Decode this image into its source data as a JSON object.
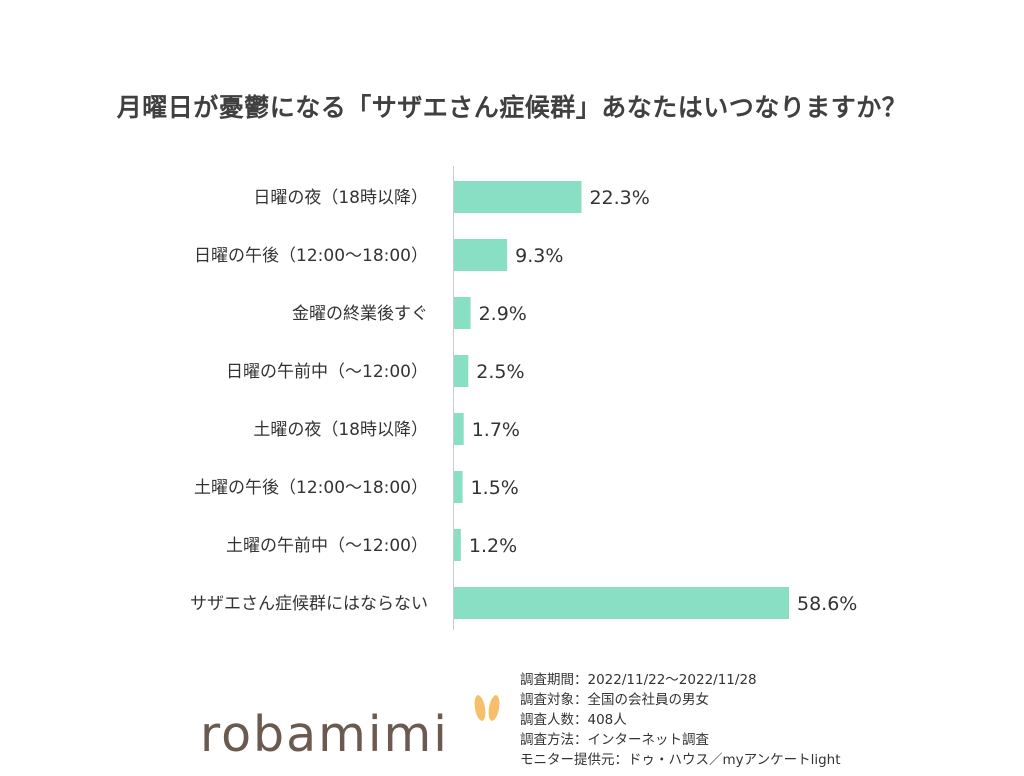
{
  "title": "月曜日が憂鬱になる「サザエさん症候群」あなたはいつなりますか？",
  "colors": {
    "bar": "#88dfc4",
    "axis": "#cccccc",
    "logo": "#6b5a50",
    "logo_ears": "#f6c06a"
  },
  "chart_data": {
    "type": "bar",
    "orientation": "horizontal",
    "title": "月曜日が憂鬱になる「サザエさん症候群」あなたはいつなりますか？",
    "categories": [
      "日曜の夜（18時以降）",
      "日曜の午後（12:00〜18:00）",
      "金曜の終業後すぐ",
      "日曜の午前中（〜12:00）",
      "土曜の夜（18時以降）",
      "土曜の午後（12:00〜18:00）",
      "土曜の午前中（〜12:00）",
      "サザエさん症候群にはならない"
    ],
    "values": [
      22.3,
      9.3,
      2.9,
      2.5,
      1.7,
      1.5,
      1.2,
      58.6
    ],
    "value_labels": [
      "22.3%",
      "9.3%",
      "2.9%",
      "2.5%",
      "1.7%",
      "1.5%",
      "1.2%",
      "58.6%"
    ],
    "xlim": [
      0,
      100
    ],
    "grid": false,
    "legend": "none"
  },
  "survey": {
    "period": "調査期間：2022/11/22〜2022/11/28",
    "target": "調査対象：全国の会社員の男女",
    "count": "調査人数：408人",
    "method": "調査方法：インターネット調査",
    "provider": "モニター提供元：ドゥ・ハウス／myアンケートlight"
  },
  "logo": {
    "text": "robamimi"
  }
}
